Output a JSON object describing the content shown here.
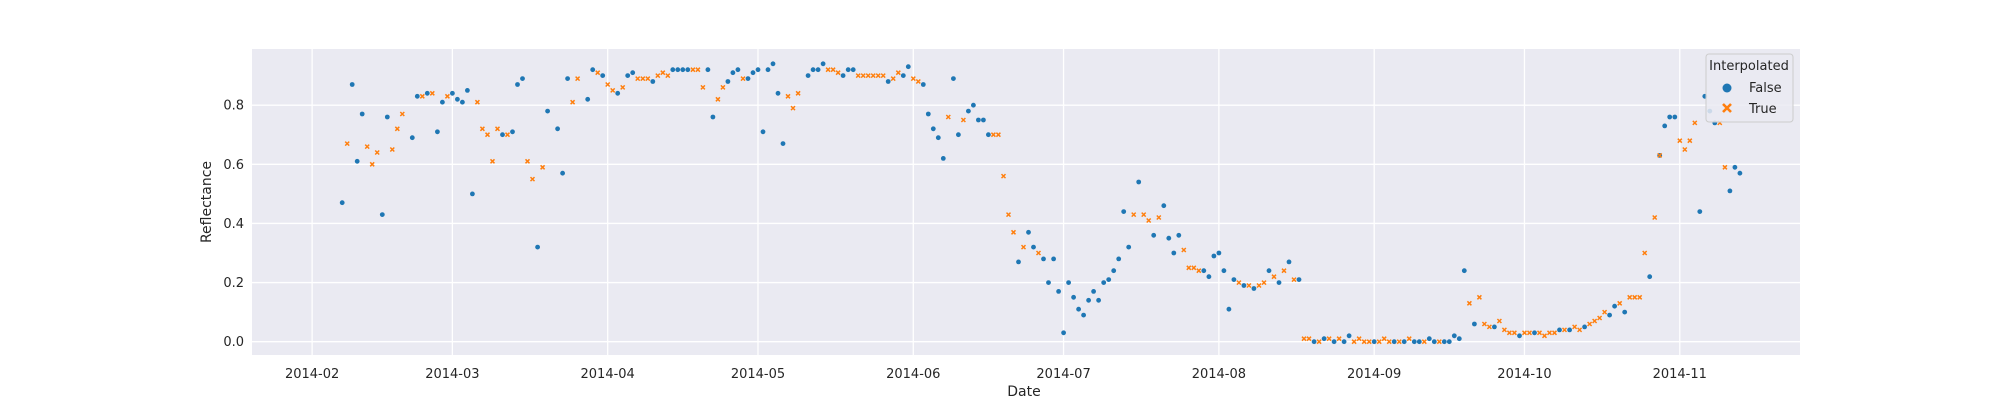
{
  "chart_data": {
    "type": "scatter",
    "title": "",
    "xlabel": "Date",
    "ylabel": "Reflectance",
    "xlim": [
      "2014-01-20",
      "2014-11-25"
    ],
    "ylim": [
      -0.045,
      0.99
    ],
    "x_ticks": [
      "2014-02",
      "2014-03",
      "2014-04",
      "2014-05",
      "2014-06",
      "2014-07",
      "2014-08",
      "2014-09",
      "2014-10",
      "2014-11"
    ],
    "y_ticks": [
      "0.0",
      "0.2",
      "0.4",
      "0.6",
      "0.8"
    ],
    "grid": true,
    "background": "#eaeaf2",
    "legend": {
      "title": "Interpolated",
      "position": "top-right",
      "entries": [
        {
          "label": "False",
          "color": "#1f77b4",
          "marker": "circle"
        },
        {
          "label": "True",
          "color": "#ff7f0e",
          "marker": "x"
        }
      ]
    },
    "series": [
      {
        "name": "False",
        "color": "#1f77b4",
        "marker": "circle",
        "points": [
          [
            "2014-02-07",
            0.47
          ],
          [
            "2014-02-09",
            0.87
          ],
          [
            "2014-02-10",
            0.61
          ],
          [
            "2014-02-11",
            0.77
          ],
          [
            "2014-02-15",
            0.43
          ],
          [
            "2014-02-16",
            0.76
          ],
          [
            "2014-02-21",
            0.69
          ],
          [
            "2014-02-22",
            0.83
          ],
          [
            "2014-02-24",
            0.84
          ],
          [
            "2014-02-26",
            0.71
          ],
          [
            "2014-02-27",
            0.81
          ],
          [
            "2014-03-01",
            0.84
          ],
          [
            "2014-03-02",
            0.82
          ],
          [
            "2014-03-03",
            0.81
          ],
          [
            "2014-03-04",
            0.85
          ],
          [
            "2014-03-05",
            0.5
          ],
          [
            "2014-03-11",
            0.7
          ],
          [
            "2014-03-13",
            0.71
          ],
          [
            "2014-03-14",
            0.87
          ],
          [
            "2014-03-15",
            0.89
          ],
          [
            "2014-03-18",
            0.32
          ],
          [
            "2014-03-20",
            0.78
          ],
          [
            "2014-03-22",
            0.72
          ],
          [
            "2014-03-23",
            0.57
          ],
          [
            "2014-03-24",
            0.89
          ],
          [
            "2014-03-28",
            0.82
          ],
          [
            "2014-03-29",
            0.92
          ],
          [
            "2014-03-31",
            0.9
          ],
          [
            "2014-04-03",
            0.84
          ],
          [
            "2014-04-05",
            0.9
          ],
          [
            "2014-04-06",
            0.91
          ],
          [
            "2014-04-10",
            0.88
          ],
          [
            "2014-04-14",
            0.92
          ],
          [
            "2014-04-15",
            0.92
          ],
          [
            "2014-04-16",
            0.92
          ],
          [
            "2014-04-17",
            0.92
          ],
          [
            "2014-04-21",
            0.92
          ],
          [
            "2014-04-22",
            0.76
          ],
          [
            "2014-04-25",
            0.88
          ],
          [
            "2014-04-26",
            0.91
          ],
          [
            "2014-04-27",
            0.92
          ],
          [
            "2014-04-29",
            0.89
          ],
          [
            "2014-04-30",
            0.91
          ],
          [
            "2014-05-01",
            0.92
          ],
          [
            "2014-05-02",
            0.71
          ],
          [
            "2014-05-03",
            0.92
          ],
          [
            "2014-05-04",
            0.94
          ],
          [
            "2014-05-05",
            0.84
          ],
          [
            "2014-05-06",
            0.67
          ],
          [
            "2014-05-11",
            0.9
          ],
          [
            "2014-05-12",
            0.92
          ],
          [
            "2014-05-13",
            0.92
          ],
          [
            "2014-05-14",
            0.94
          ],
          [
            "2014-05-18",
            0.9
          ],
          [
            "2014-05-19",
            0.92
          ],
          [
            "2014-05-20",
            0.92
          ],
          [
            "2014-05-27",
            0.88
          ],
          [
            "2014-05-30",
            0.9
          ],
          [
            "2014-05-31",
            0.93
          ],
          [
            "2014-06-03",
            0.87
          ],
          [
            "2014-06-04",
            0.77
          ],
          [
            "2014-06-05",
            0.72
          ],
          [
            "2014-06-06",
            0.69
          ],
          [
            "2014-06-07",
            0.62
          ],
          [
            "2014-06-09",
            0.89
          ],
          [
            "2014-06-10",
            0.7
          ],
          [
            "2014-06-12",
            0.78
          ],
          [
            "2014-06-13",
            0.8
          ],
          [
            "2014-06-14",
            0.75
          ],
          [
            "2014-06-15",
            0.75
          ],
          [
            "2014-06-16",
            0.7
          ],
          [
            "2014-06-22",
            0.27
          ],
          [
            "2014-06-24",
            0.37
          ],
          [
            "2014-06-25",
            0.32
          ],
          [
            "2014-06-27",
            0.28
          ],
          [
            "2014-06-28",
            0.2
          ],
          [
            "2014-06-29",
            0.28
          ],
          [
            "2014-06-30",
            0.17
          ],
          [
            "2014-07-01",
            0.03
          ],
          [
            "2014-07-02",
            0.2
          ],
          [
            "2014-07-03",
            0.15
          ],
          [
            "2014-07-04",
            0.11
          ],
          [
            "2014-07-05",
            0.09
          ],
          [
            "2014-07-06",
            0.14
          ],
          [
            "2014-07-07",
            0.17
          ],
          [
            "2014-07-08",
            0.14
          ],
          [
            "2014-07-09",
            0.2
          ],
          [
            "2014-07-10",
            0.21
          ],
          [
            "2014-07-11",
            0.24
          ],
          [
            "2014-07-12",
            0.28
          ],
          [
            "2014-07-13",
            0.44
          ],
          [
            "2014-07-14",
            0.32
          ],
          [
            "2014-07-16",
            0.54
          ],
          [
            "2014-07-19",
            0.36
          ],
          [
            "2014-07-21",
            0.46
          ],
          [
            "2014-07-22",
            0.35
          ],
          [
            "2014-07-23",
            0.3
          ],
          [
            "2014-07-24",
            0.36
          ],
          [
            "2014-07-29",
            0.24
          ],
          [
            "2014-07-30",
            0.22
          ],
          [
            "2014-07-31",
            0.29
          ],
          [
            "2014-08-01",
            0.3
          ],
          [
            "2014-08-02",
            0.24
          ],
          [
            "2014-08-03",
            0.11
          ],
          [
            "2014-08-04",
            0.21
          ],
          [
            "2014-08-06",
            0.19
          ],
          [
            "2014-08-08",
            0.18
          ],
          [
            "2014-08-11",
            0.24
          ],
          [
            "2014-08-13",
            0.2
          ],
          [
            "2014-08-15",
            0.27
          ],
          [
            "2014-08-17",
            0.21
          ],
          [
            "2014-08-20",
            0.0
          ],
          [
            "2014-08-22",
            0.01
          ],
          [
            "2014-08-24",
            0.0
          ],
          [
            "2014-08-26",
            0.0
          ],
          [
            "2014-08-27",
            0.02
          ],
          [
            "2014-09-01",
            0.0
          ],
          [
            "2014-09-05",
            0.0
          ],
          [
            "2014-09-07",
            0.0
          ],
          [
            "2014-09-09",
            0.0
          ],
          [
            "2014-09-10",
            0.0
          ],
          [
            "2014-09-12",
            0.01
          ],
          [
            "2014-09-13",
            0.0
          ],
          [
            "2014-09-15",
            0.0
          ],
          [
            "2014-09-16",
            0.0
          ],
          [
            "2014-09-17",
            0.02
          ],
          [
            "2014-09-18",
            0.01
          ],
          [
            "2014-09-19",
            0.24
          ],
          [
            "2014-09-21",
            0.06
          ],
          [
            "2014-09-25",
            0.05
          ],
          [
            "2014-09-30",
            0.02
          ],
          [
            "2014-10-03",
            0.03
          ],
          [
            "2014-10-08",
            0.04
          ],
          [
            "2014-10-10",
            0.04
          ],
          [
            "2014-10-13",
            0.05
          ],
          [
            "2014-10-18",
            0.09
          ],
          [
            "2014-10-19",
            0.12
          ],
          [
            "2014-10-21",
            0.1
          ],
          [
            "2014-10-26",
            0.22
          ],
          [
            "2014-10-28",
            0.63
          ],
          [
            "2014-10-29",
            0.73
          ],
          [
            "2014-10-30",
            0.76
          ],
          [
            "2014-10-31",
            0.76
          ],
          [
            "2014-11-05",
            0.44
          ],
          [
            "2014-11-06",
            0.83
          ],
          [
            "2014-11-07",
            0.78
          ],
          [
            "2014-11-08",
            0.74
          ],
          [
            "2014-11-11",
            0.51
          ],
          [
            "2014-11-12",
            0.59
          ],
          [
            "2014-11-13",
            0.57
          ]
        ]
      },
      {
        "name": "True",
        "color": "#ff7f0e",
        "marker": "x",
        "points": [
          [
            "2014-02-08",
            0.67
          ],
          [
            "2014-02-12",
            0.66
          ],
          [
            "2014-02-13",
            0.6
          ],
          [
            "2014-02-14",
            0.64
          ],
          [
            "2014-02-17",
            0.65
          ],
          [
            "2014-02-18",
            0.72
          ],
          [
            "2014-02-19",
            0.77
          ],
          [
            "2014-02-23",
            0.83
          ],
          [
            "2014-02-25",
            0.84
          ],
          [
            "2014-02-28",
            0.83
          ],
          [
            "2014-03-06",
            0.81
          ],
          [
            "2014-03-07",
            0.72
          ],
          [
            "2014-03-08",
            0.7
          ],
          [
            "2014-03-09",
            0.61
          ],
          [
            "2014-03-10",
            0.72
          ],
          [
            "2014-03-12",
            0.7
          ],
          [
            "2014-03-16",
            0.61
          ],
          [
            "2014-03-17",
            0.55
          ],
          [
            "2014-03-19",
            0.59
          ],
          [
            "2014-03-25",
            0.81
          ],
          [
            "2014-03-26",
            0.89
          ],
          [
            "2014-03-30",
            0.91
          ],
          [
            "2014-04-01",
            0.87
          ],
          [
            "2014-04-02",
            0.85
          ],
          [
            "2014-04-04",
            0.86
          ],
          [
            "2014-04-07",
            0.89
          ],
          [
            "2014-04-08",
            0.89
          ],
          [
            "2014-04-09",
            0.89
          ],
          [
            "2014-04-11",
            0.9
          ],
          [
            "2014-04-12",
            0.91
          ],
          [
            "2014-04-13",
            0.9
          ],
          [
            "2014-04-18",
            0.92
          ],
          [
            "2014-04-19",
            0.92
          ],
          [
            "2014-04-20",
            0.86
          ],
          [
            "2014-04-23",
            0.82
          ],
          [
            "2014-04-24",
            0.86
          ],
          [
            "2014-04-28",
            0.89
          ],
          [
            "2014-05-07",
            0.83
          ],
          [
            "2014-05-08",
            0.79
          ],
          [
            "2014-05-09",
            0.84
          ],
          [
            "2014-05-15",
            0.92
          ],
          [
            "2014-05-16",
            0.92
          ],
          [
            "2014-05-17",
            0.91
          ],
          [
            "2014-05-21",
            0.9
          ],
          [
            "2014-05-22",
            0.9
          ],
          [
            "2014-05-23",
            0.9
          ],
          [
            "2014-05-24",
            0.9
          ],
          [
            "2014-05-25",
            0.9
          ],
          [
            "2014-05-26",
            0.9
          ],
          [
            "2014-05-28",
            0.89
          ],
          [
            "2014-05-29",
            0.91
          ],
          [
            "2014-06-01",
            0.89
          ],
          [
            "2014-06-02",
            0.88
          ],
          [
            "2014-06-08",
            0.76
          ],
          [
            "2014-06-11",
            0.75
          ],
          [
            "2014-06-17",
            0.7
          ],
          [
            "2014-06-18",
            0.7
          ],
          [
            "2014-06-19",
            0.56
          ],
          [
            "2014-06-20",
            0.43
          ],
          [
            "2014-06-21",
            0.37
          ],
          [
            "2014-06-23",
            0.32
          ],
          [
            "2014-06-26",
            0.3
          ],
          [
            "2014-07-15",
            0.43
          ],
          [
            "2014-07-17",
            0.43
          ],
          [
            "2014-07-18",
            0.41
          ],
          [
            "2014-07-20",
            0.42
          ],
          [
            "2014-07-25",
            0.31
          ],
          [
            "2014-07-26",
            0.25
          ],
          [
            "2014-07-27",
            0.25
          ],
          [
            "2014-07-28",
            0.24
          ],
          [
            "2014-08-05",
            0.2
          ],
          [
            "2014-08-07",
            0.19
          ],
          [
            "2014-08-09",
            0.19
          ],
          [
            "2014-08-10",
            0.2
          ],
          [
            "2014-08-12",
            0.22
          ],
          [
            "2014-08-14",
            0.24
          ],
          [
            "2014-08-16",
            0.21
          ],
          [
            "2014-08-18",
            0.01
          ],
          [
            "2014-08-19",
            0.01
          ],
          [
            "2014-08-21",
            0.0
          ],
          [
            "2014-08-23",
            0.01
          ],
          [
            "2014-08-25",
            0.01
          ],
          [
            "2014-08-28",
            0.0
          ],
          [
            "2014-08-29",
            0.01
          ],
          [
            "2014-08-30",
            0.0
          ],
          [
            "2014-08-31",
            0.0
          ],
          [
            "2014-09-02",
            0.0
          ],
          [
            "2014-09-03",
            0.01
          ],
          [
            "2014-09-04",
            0.0
          ],
          [
            "2014-09-06",
            0.0
          ],
          [
            "2014-09-08",
            0.01
          ],
          [
            "2014-09-11",
            0.0
          ],
          [
            "2014-09-14",
            0.0
          ],
          [
            "2014-09-20",
            0.13
          ],
          [
            "2014-09-22",
            0.15
          ],
          [
            "2014-09-23",
            0.06
          ],
          [
            "2014-09-24",
            0.05
          ],
          [
            "2014-09-26",
            0.07
          ],
          [
            "2014-09-27",
            0.04
          ],
          [
            "2014-09-28",
            0.03
          ],
          [
            "2014-09-29",
            0.03
          ],
          [
            "2014-10-01",
            0.03
          ],
          [
            "2014-10-02",
            0.03
          ],
          [
            "2014-10-04",
            0.03
          ],
          [
            "2014-10-05",
            0.02
          ],
          [
            "2014-10-06",
            0.03
          ],
          [
            "2014-10-07",
            0.03
          ],
          [
            "2014-10-09",
            0.04
          ],
          [
            "2014-10-11",
            0.05
          ],
          [
            "2014-10-12",
            0.04
          ],
          [
            "2014-10-14",
            0.06
          ],
          [
            "2014-10-15",
            0.07
          ],
          [
            "2014-10-16",
            0.08
          ],
          [
            "2014-10-17",
            0.1
          ],
          [
            "2014-10-20",
            0.13
          ],
          [
            "2014-10-22",
            0.15
          ],
          [
            "2014-10-23",
            0.15
          ],
          [
            "2014-10-24",
            0.15
          ],
          [
            "2014-10-25",
            0.3
          ],
          [
            "2014-10-27",
            0.42
          ],
          [
            "2014-10-28",
            0.63
          ],
          [
            "2014-11-01",
            0.68
          ],
          [
            "2014-11-02",
            0.65
          ],
          [
            "2014-11-03",
            0.68
          ],
          [
            "2014-11-04",
            0.74
          ],
          [
            "2014-11-09",
            0.74
          ],
          [
            "2014-11-10",
            0.59
          ]
        ]
      }
    ]
  }
}
